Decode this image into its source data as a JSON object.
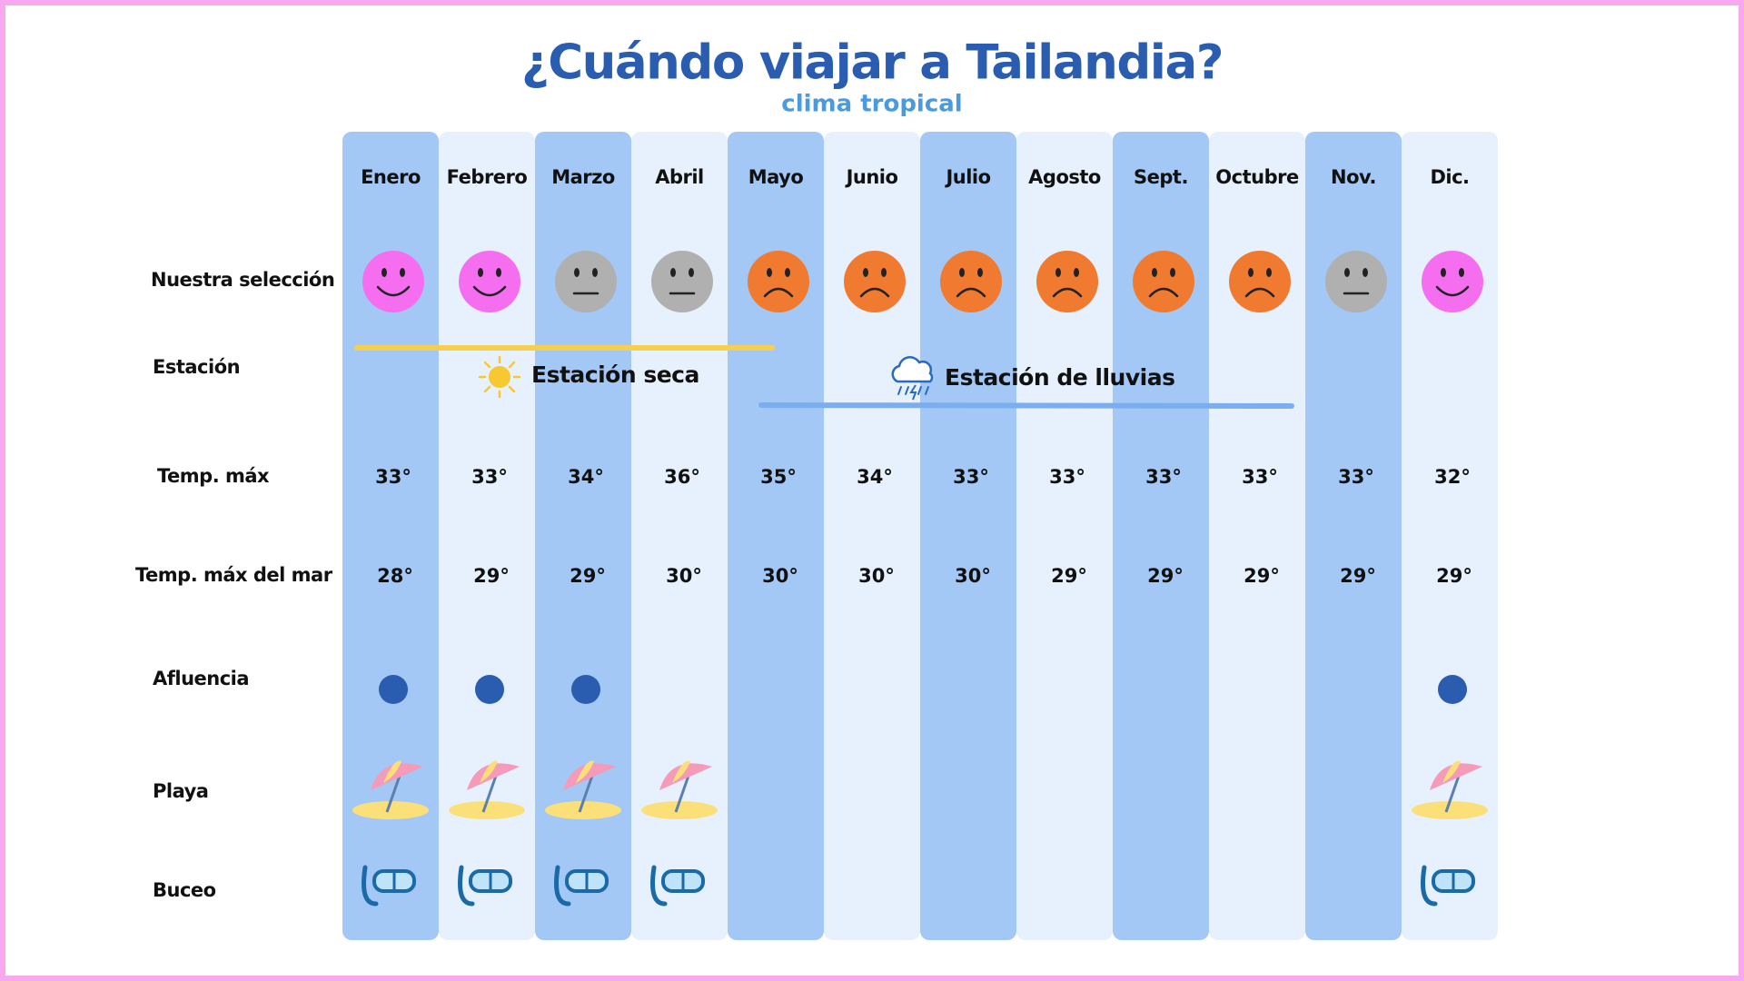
{
  "header": {
    "title": "¿Cuándo viajar a Tailandia?",
    "subtitle": "clima tropical"
  },
  "table": {
    "months": [
      "Enero",
      "Febrero",
      "Marzo",
      "Abril",
      "Mayo",
      "Junio",
      "Julio",
      "Agosto",
      "Sept.",
      "Octubre",
      "Nov.",
      "Dic."
    ],
    "row_labels": [
      "Nuestra selección",
      "Estación",
      "Temp. máx",
      "Temp. máx del mar",
      "Afluencia",
      "Playa",
      "Buceo"
    ],
    "seasons": [
      "Estación seca",
      "Estación de lluvias"
    ],
    "temp_max": [
      "33°",
      "33°",
      "34°",
      "36°",
      "35°",
      "34°",
      "33°",
      "33°",
      "33°",
      "33°",
      "33°",
      "32°"
    ],
    "temp_sea": [
      "28°",
      "29°",
      "29°",
      "30°",
      "30°",
      "30°",
      "30°",
      "29°",
      "29°",
      "29°",
      "29°",
      "29°"
    ]
  }
}
